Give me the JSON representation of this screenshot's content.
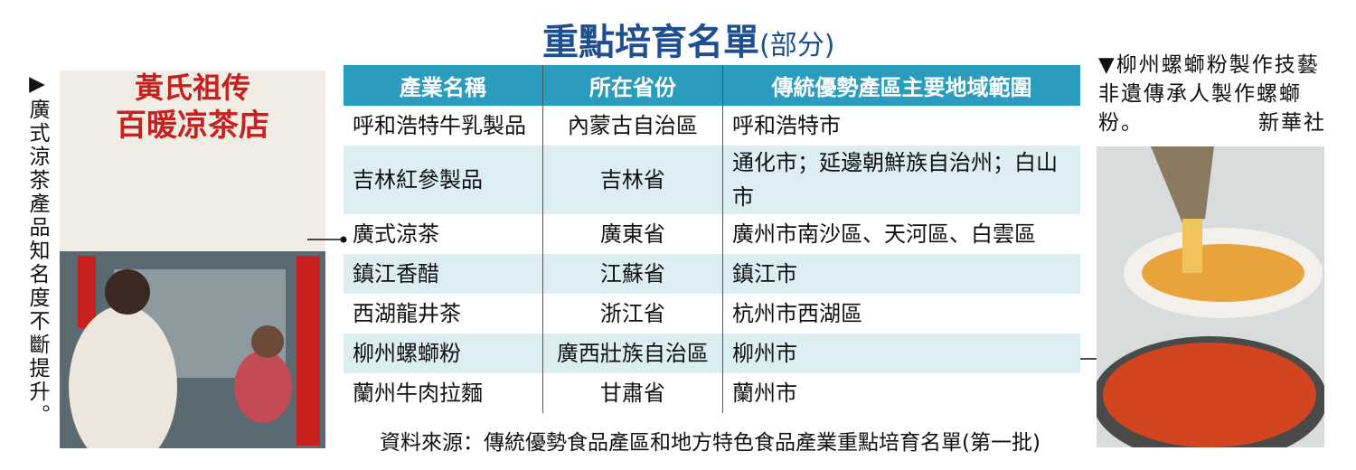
{
  "header": {
    "title": "重點培育名單",
    "subtitle": "(部分)"
  },
  "left_photo": {
    "caption": "▶廣式涼茶產品知名度不斷提升。",
    "sign": [
      "黃氏祖传",
      "百暖凉茶店"
    ]
  },
  "right_photo": {
    "caption": "▼柳州螺螄粉製作技藝非遺傳承人製作螺螄粉。",
    "credit": "新華社"
  },
  "table": {
    "columns": [
      "產業名稱",
      "所在省份",
      "傳統優勢產區主要地域範圍"
    ],
    "rows": [
      [
        "呼和浩特牛乳製品",
        "內蒙古自治區",
        "呼和浩特市"
      ],
      [
        "吉林紅參製品",
        "吉林省",
        "通化市；延邊朝鮮族自治州；白山市"
      ],
      [
        "廣式涼茶",
        "廣東省",
        "廣州市南沙區、天河區、白雲區"
      ],
      [
        "鎮江香醋",
        "江蘇省",
        "鎮江市"
      ],
      [
        "西湖龍井茶",
        "浙江省",
        "杭州市西湖區"
      ],
      [
        "柳州螺螄粉",
        "廣西壯族自治區",
        "柳州市"
      ],
      [
        "蘭州牛肉拉麵",
        "甘肅省",
        "蘭州市"
      ]
    ]
  },
  "source": "資料來源：傳統優勢食品產區和地方特色食品產業重點培育名單(第一批)"
}
